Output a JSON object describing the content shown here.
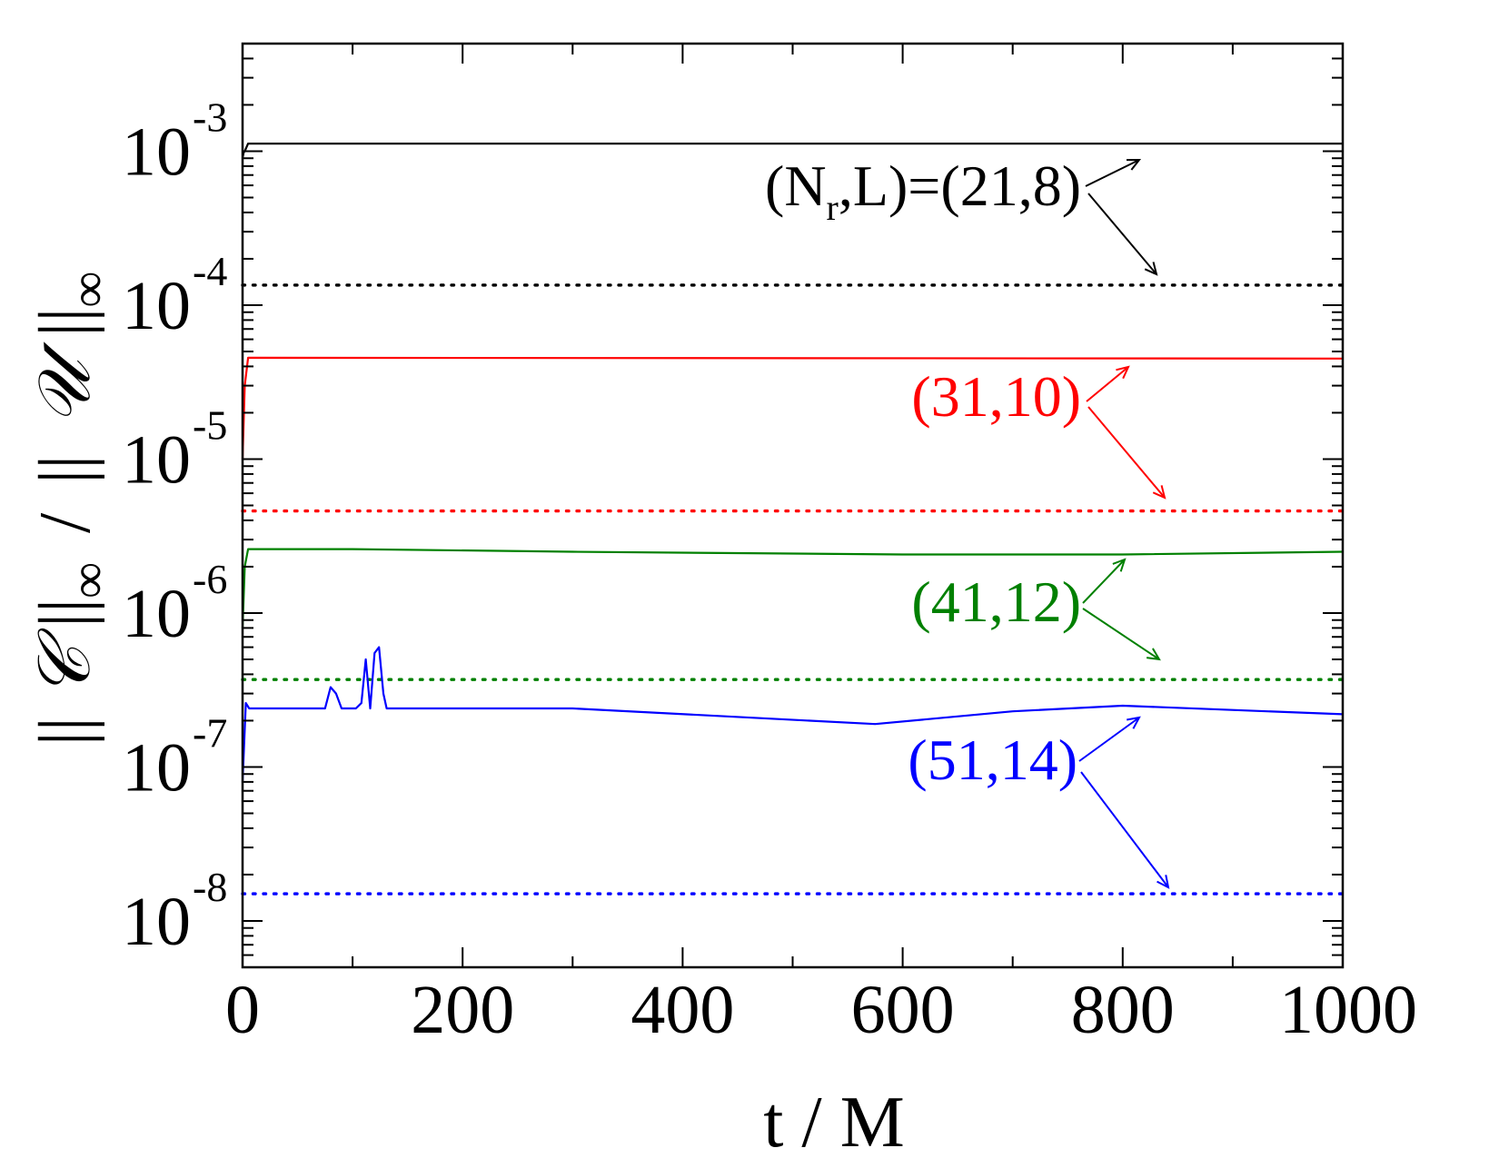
{
  "chart_data": {
    "type": "line",
    "title": "",
    "xlabel": "t / M",
    "ylabel": "|| 𝒞 ||∞ / || 𝒰 ||∞",
    "ylabel_parts": {
      "bar": "||",
      "c": "𝒞",
      "inf": "∞",
      "slash": "/",
      "u": "𝒰"
    },
    "xlim": [
      0,
      1000
    ],
    "ylim": [
      5e-09,
      0.005
    ],
    "yscale": "log",
    "grid": false,
    "legend": "none",
    "x_ticks": [
      "0",
      "200",
      "400",
      "600",
      "800",
      "1000"
    ],
    "y_ticks": [
      {
        "base": "10",
        "exp": "-8",
        "value": 1e-08
      },
      {
        "base": "10",
        "exp": "-7",
        "value": 1e-07
      },
      {
        "base": "10",
        "exp": "-6",
        "value": 1e-06
      },
      {
        "base": "10",
        "exp": "-5",
        "value": 1e-05
      },
      {
        "base": "10",
        "exp": "-4",
        "value": 0.0001
      },
      {
        "base": "10",
        "exp": "-3",
        "value": 0.001
      }
    ],
    "annotations": [
      {
        "prefix": "(N",
        "sub": "r",
        "suffix": ",L)=(21,8)",
        "color": "#000000"
      },
      {
        "prefix": "(31,10)",
        "sub": "",
        "suffix": "",
        "color": "#ff0000"
      },
      {
        "prefix": "(41,12)",
        "sub": "",
        "suffix": "",
        "color": "#008000"
      },
      {
        "prefix": "(51,14)",
        "sub": "",
        "suffix": "",
        "color": "#0000ff"
      }
    ],
    "series": [
      {
        "color": "#000000",
        "style": "solid",
        "x": [
          0,
          1,
          2,
          5,
          1000
        ],
        "y": [
          0.0009,
          0.00098,
          0.001,
          0.00112,
          0.00112
        ]
      },
      {
        "color": "#000000",
        "style": "dotted",
        "x": [
          0,
          1000
        ],
        "y": [
          0.000135,
          0.000135
        ]
      },
      {
        "color": "#ff0000",
        "style": "solid",
        "x": [
          0,
          2,
          5,
          1000
        ],
        "y": [
          1e-05,
          3e-05,
          4.55e-05,
          4.5e-05
        ]
      },
      {
        "color": "#ff0000",
        "style": "dotted",
        "x": [
          0,
          1000
        ],
        "y": [
          4.6e-06,
          4.6e-06
        ]
      },
      {
        "color": "#008000",
        "style": "solid",
        "x": [
          0,
          2,
          5,
          100,
          300,
          600,
          800,
          1000
        ],
        "y": [
          8e-07,
          2e-06,
          2.6e-06,
          2.6e-06,
          2.5e-06,
          2.4e-06,
          2.4e-06,
          2.5e-06
        ]
      },
      {
        "color": "#008000",
        "style": "dotted",
        "x": [
          0,
          1000
        ],
        "y": [
          3.7e-07,
          3.7e-07
        ]
      },
      {
        "color": "#0000ff",
        "style": "solid",
        "x": [
          0,
          3,
          6,
          10,
          75,
          80,
          85,
          90,
          103,
          108,
          112,
          116,
          120,
          124,
          128,
          131,
          136,
          300,
          575,
          700,
          800,
          1000
        ],
        "y": [
          8e-08,
          2.6e-07,
          2.4e-07,
          2.4e-07,
          2.4e-07,
          3.3e-07,
          3e-07,
          2.4e-07,
          2.4e-07,
          2.6e-07,
          5e-07,
          2.4e-07,
          5.5e-07,
          6e-07,
          3e-07,
          2.4e-07,
          2.4e-07,
          2.4e-07,
          1.9e-07,
          2.3e-07,
          2.5e-07,
          2.2e-07
        ]
      },
      {
        "color": "#0000ff",
        "style": "dotted",
        "x": [
          0,
          1000
        ],
        "y": [
          1.5e-08,
          1.5e-08
        ]
      }
    ]
  }
}
